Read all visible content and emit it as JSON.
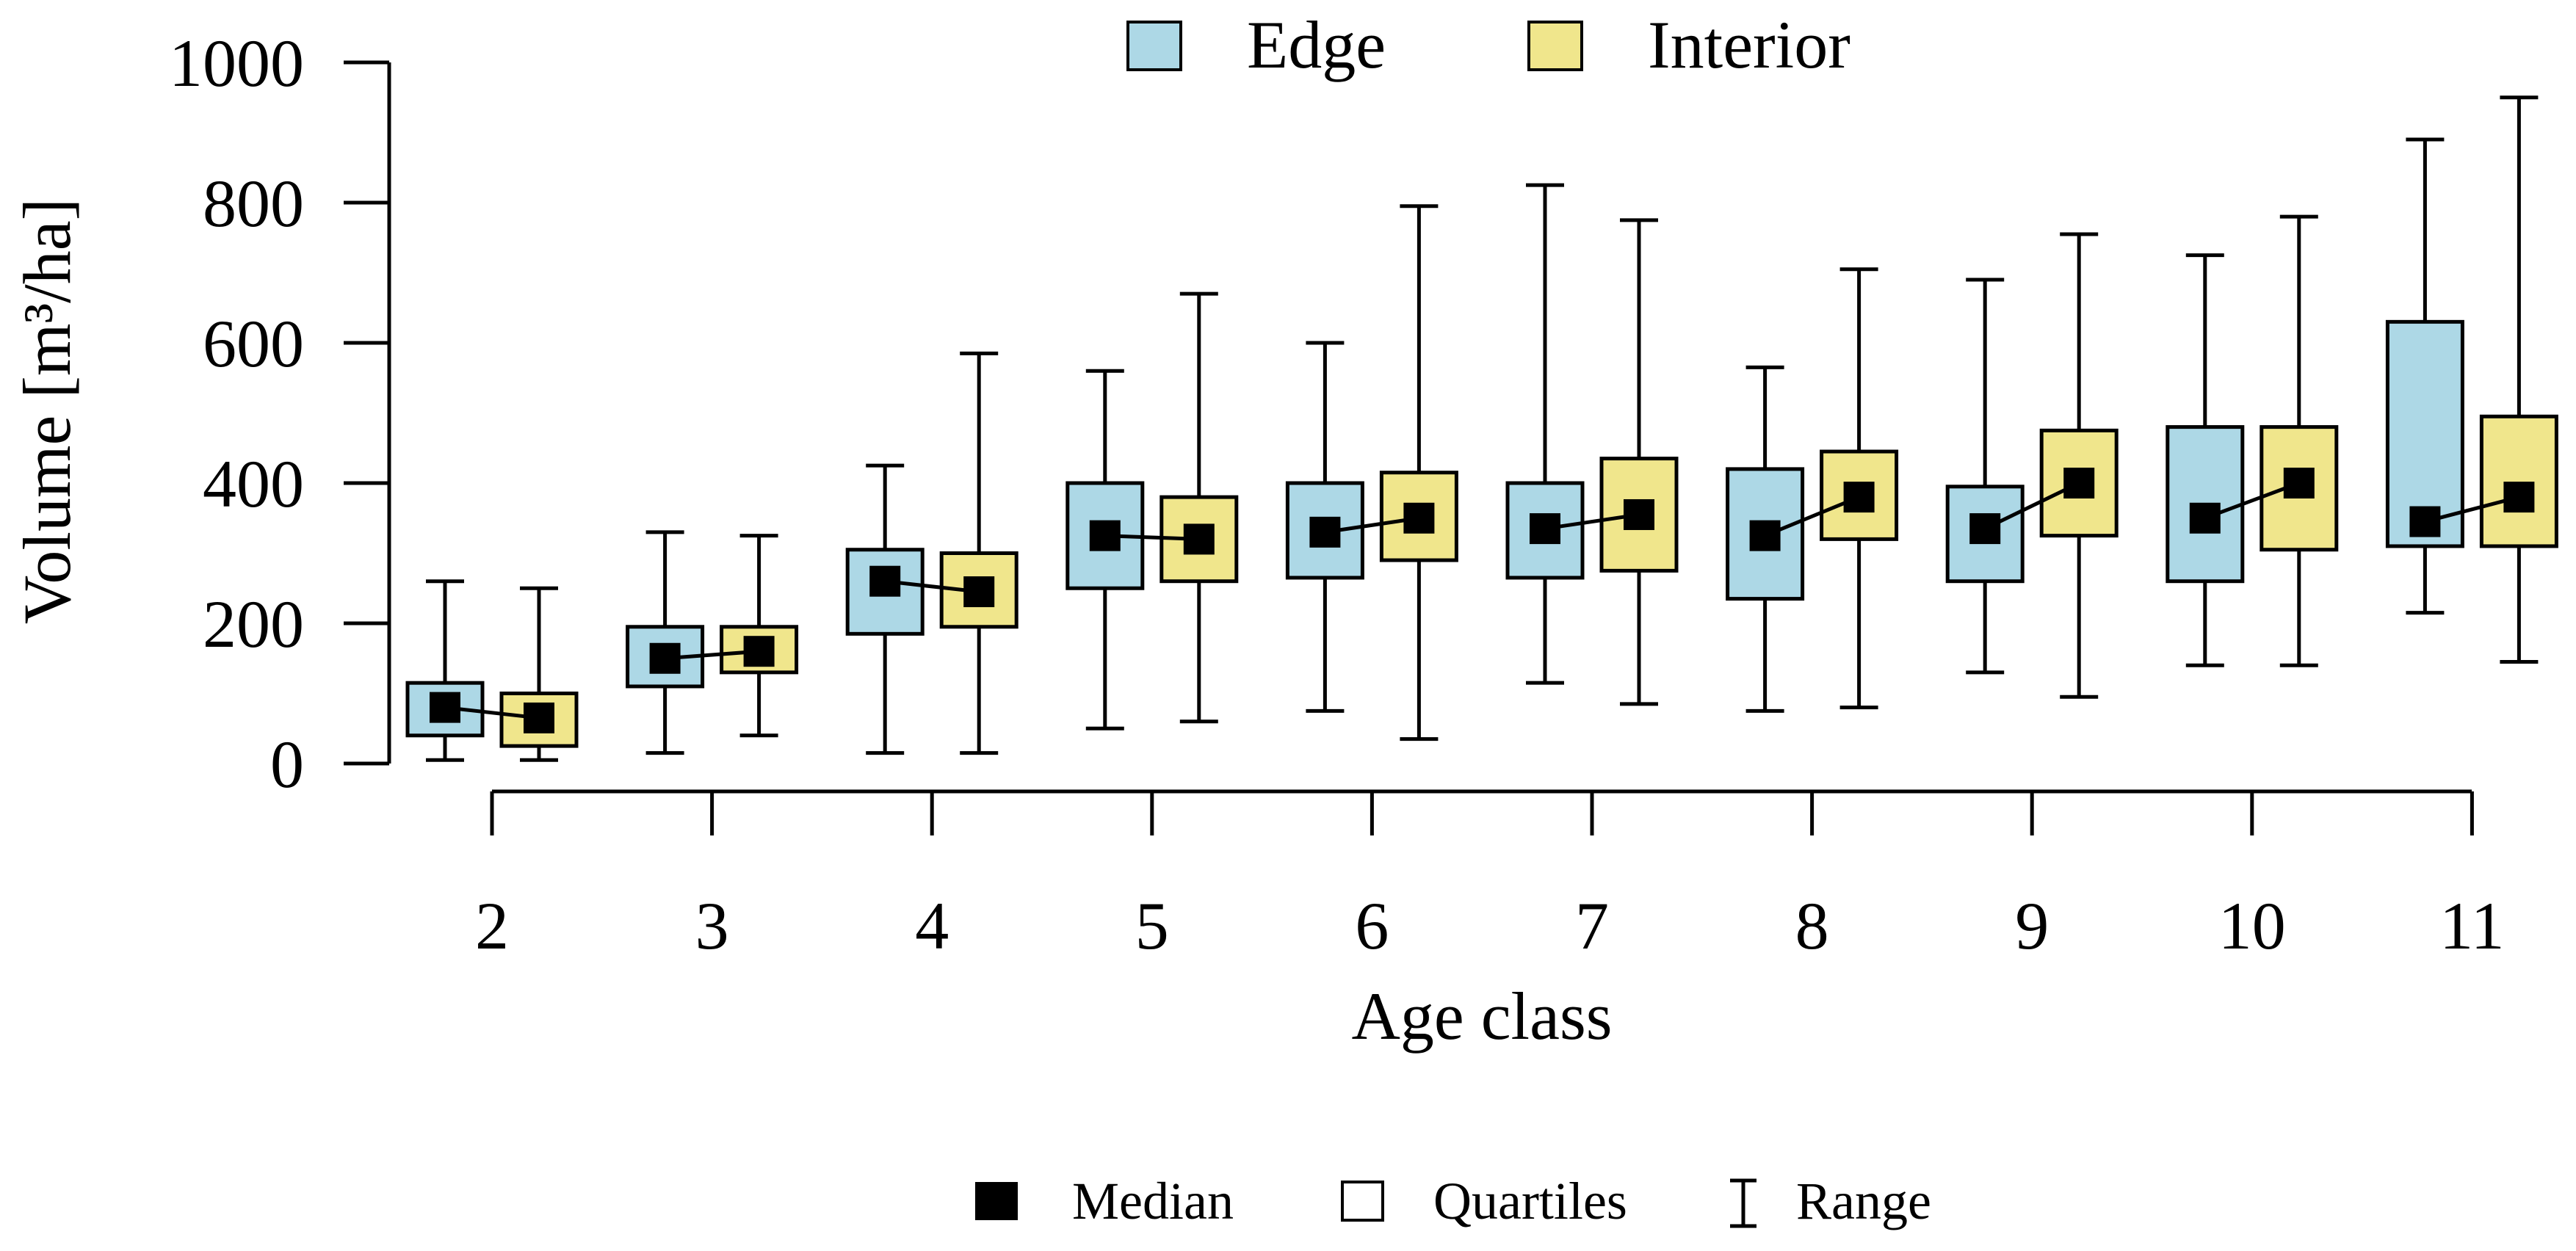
{
  "chart_data": {
    "type": "boxplot",
    "title": "",
    "xlabel": "Age class",
    "ylabel": "Volume [m³/ha]",
    "ylim": [
      0,
      1000
    ],
    "yticks": [
      0,
      200,
      400,
      600,
      800,
      1000
    ],
    "categories": [
      "2",
      "3",
      "4",
      "5",
      "6",
      "7",
      "8",
      "9",
      "10",
      "11"
    ],
    "series": [
      {
        "name": "Edge",
        "color": "#add8e6",
        "min": [
          5,
          15,
          15,
          50,
          75,
          115,
          75,
          130,
          140,
          215
        ],
        "q1": [
          40,
          110,
          185,
          250,
          265,
          265,
          235,
          260,
          260,
          310
        ],
        "median": [
          80,
          150,
          260,
          325,
          330,
          335,
          325,
          335,
          350,
          345
        ],
        "q3": [
          115,
          195,
          305,
          400,
          400,
          400,
          420,
          395,
          480,
          630
        ],
        "max": [
          260,
          330,
          425,
          560,
          600,
          825,
          565,
          690,
          725,
          890
        ]
      },
      {
        "name": "Interior",
        "color": "#f0e68c",
        "min": [
          5,
          40,
          15,
          60,
          35,
          85,
          80,
          95,
          140,
          145
        ],
        "q1": [
          25,
          130,
          195,
          260,
          290,
          275,
          320,
          325,
          305,
          310
        ],
        "median": [
          65,
          160,
          245,
          320,
          350,
          355,
          380,
          400,
          400,
          380
        ],
        "q3": [
          100,
          195,
          300,
          380,
          415,
          435,
          445,
          475,
          480,
          495
        ],
        "max": [
          250,
          325,
          585,
          670,
          795,
          775,
          705,
          755,
          780,
          950
        ]
      }
    ],
    "legend_top": [
      "Edge",
      "Interior"
    ],
    "legend_bottom": [
      "Median",
      "Quartiles",
      "Range"
    ],
    "legend_placement": "top-center"
  }
}
